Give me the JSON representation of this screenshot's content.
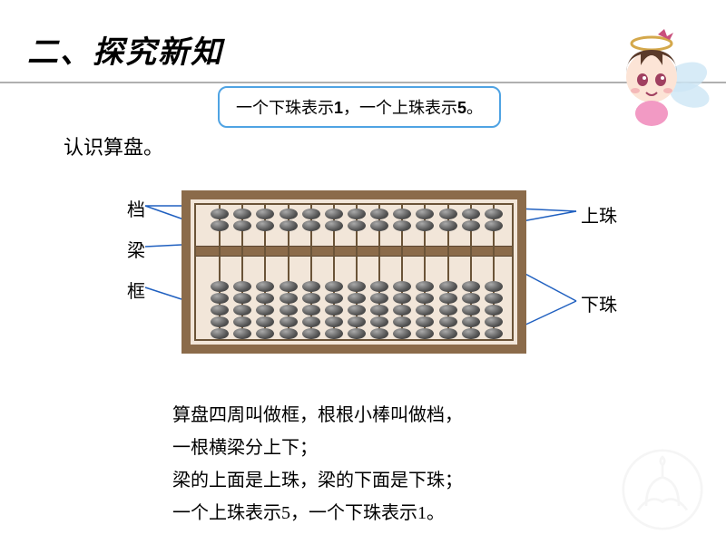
{
  "section_title": "二、探究新知",
  "speech_bubble": {
    "prefix1": "一个下珠表示",
    "num1": "1",
    "mid": "，一个上珠表示",
    "num2": "5",
    "suffix": "。"
  },
  "subtitle": "认识算盘。",
  "labels": {
    "dang": "档",
    "liang": "梁",
    "kuang": "框",
    "shangzhu": "上珠",
    "xiazhu": "下珠"
  },
  "description": {
    "l1": "算盘四周叫做框，根根小棒叫做档，",
    "l2": "一根横梁分上下；",
    "l3": "梁的上面是上珠，梁的下面是下珠；",
    "l4": "一个上珠表示5，一个下珠表示1。"
  },
  "abacus": {
    "rods": 13,
    "upper_beads": 2,
    "lower_beads": 5,
    "frame_color": "#8b6b4a",
    "bead_colors": {
      "light": "#aaaaaa",
      "mid": "#555555",
      "dark": "#333333"
    },
    "rod_color": "#6b5438"
  },
  "annotation_line_color": "#2060c0",
  "bubble_border_color": "#4fa3e3",
  "fairy": {
    "face_color": "#fce4d6",
    "hair_color": "#5a3a2a",
    "eye_color": "#a04060",
    "wing_color": "#cde6f5",
    "halo_color": "#d4a84b",
    "body_color": "#f29ac4"
  }
}
